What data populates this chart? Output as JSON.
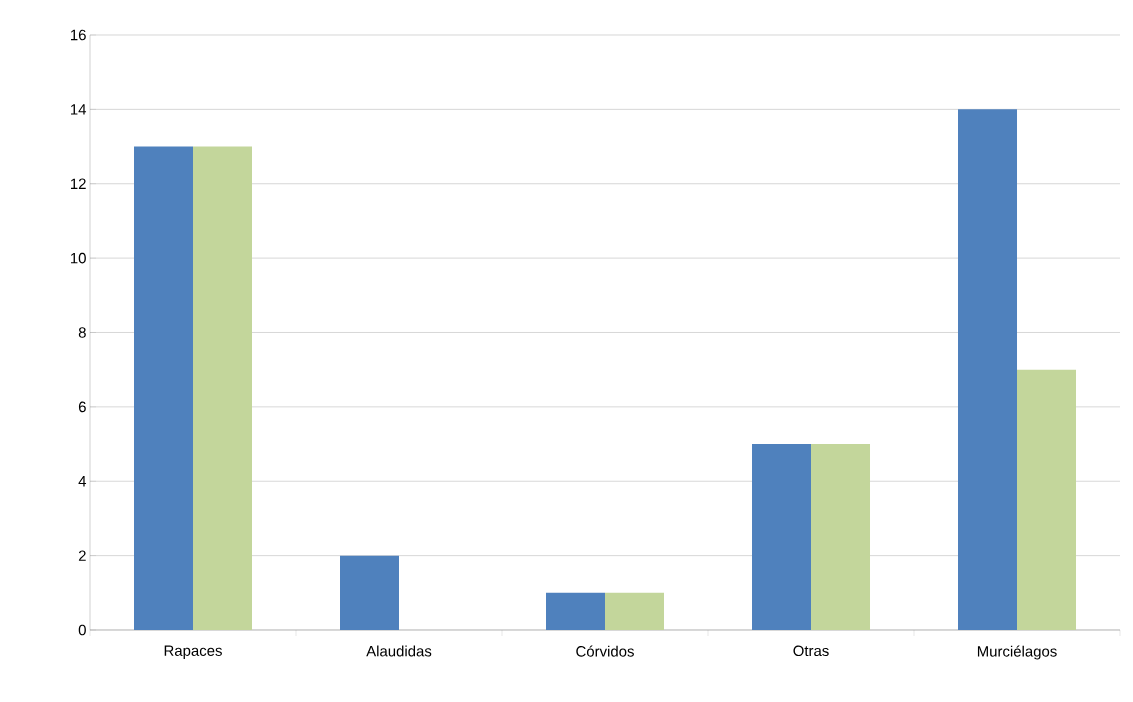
{
  "chart_data": {
    "type": "bar",
    "categories": [
      "Rapaces",
      "Alaudidas",
      "Córvidos",
      "Otras",
      "Murciélagos"
    ],
    "series": [
      {
        "color": "#4f81bd",
        "values": [
          13,
          2,
          1,
          5,
          14
        ]
      },
      {
        "color": "#c3d69b",
        "values": [
          13,
          0,
          1,
          5,
          7
        ]
      }
    ],
    "ylim": [
      0,
      16
    ],
    "yticks": [
      0,
      2,
      4,
      6,
      8,
      10,
      12,
      14,
      16
    ],
    "grid": "y"
  }
}
